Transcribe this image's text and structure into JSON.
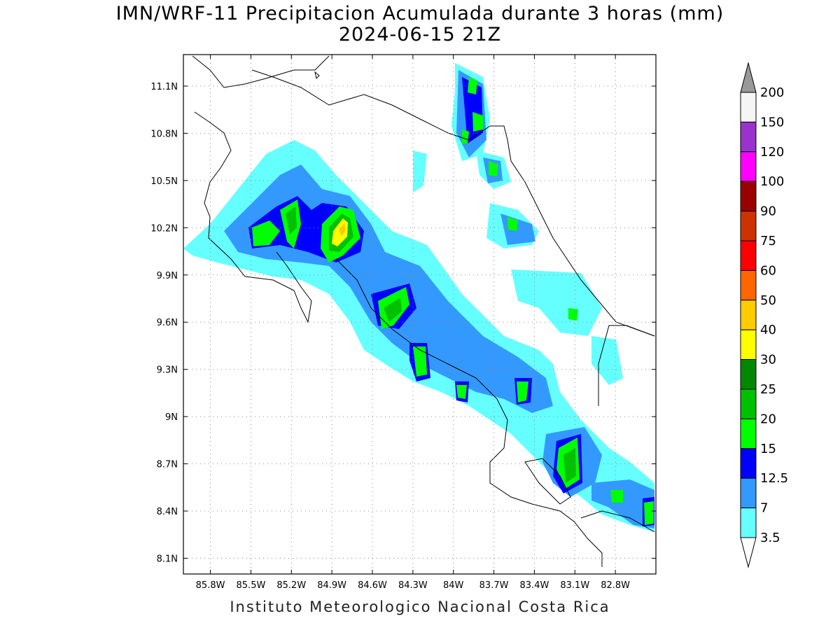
{
  "title": {
    "line1": "IMN/WRF-11 Precipitacion Acumulada durante 3 horas (mm)",
    "line2": "2024-06-15 21Z"
  },
  "footer": "Instituto Meteorologico Nacional Costa Rica",
  "map": {
    "lon_range": [
      -86.0,
      -82.5
    ],
    "lat_range": [
      8.0,
      11.3
    ],
    "lon_ticks": [
      {
        "value": -85.8,
        "label": "85.8W"
      },
      {
        "value": -85.5,
        "label": "85.5W"
      },
      {
        "value": -85.2,
        "label": "85.2W"
      },
      {
        "value": -84.9,
        "label": "84.9W"
      },
      {
        "value": -84.6,
        "label": "84.6W"
      },
      {
        "value": -84.3,
        "label": "84.3W"
      },
      {
        "value": -84.0,
        "label": "84W"
      },
      {
        "value": -83.7,
        "label": "83.7W"
      },
      {
        "value": -83.4,
        "label": "83.4W"
      },
      {
        "value": -83.1,
        "label": "83.1W"
      },
      {
        "value": -82.8,
        "label": "82.8W"
      }
    ],
    "lat_ticks": [
      {
        "value": 11.1,
        "label": "11.1N"
      },
      {
        "value": 10.8,
        "label": "10.8N"
      },
      {
        "value": 10.5,
        "label": "10.5N"
      },
      {
        "value": 10.2,
        "label": "10.2N"
      },
      {
        "value": 9.9,
        "label": "9.9N"
      },
      {
        "value": 9.6,
        "label": "9.6N"
      },
      {
        "value": 9.3,
        "label": "9.3N"
      },
      {
        "value": 9.0,
        "label": "9N"
      },
      {
        "value": 8.7,
        "label": "8.7N"
      },
      {
        "value": 8.4,
        "label": "8.4N"
      },
      {
        "value": 8.1,
        "label": "8.1N"
      }
    ],
    "grid": true
  },
  "colorbar": {
    "levels": [
      "200",
      "150",
      "120",
      "100",
      "90",
      "75",
      "60",
      "50",
      "40",
      "30",
      "25",
      "20",
      "15",
      "12.5",
      "7",
      "3.5"
    ],
    "colors": [
      "#f5f5f5",
      "#9a32cd",
      "#ff00ff",
      "#990000",
      "#cc3300",
      "#ff0000",
      "#ff6600",
      "#ffcc00",
      "#ffff00",
      "#008800",
      "#00c000",
      "#00ff00",
      "#0000ff",
      "#3399ff",
      "#66ffff"
    ],
    "over_color": "#999999",
    "under_color": "#ffffff"
  },
  "colors": {
    "l35": "#66ffff",
    "l7": "#3399ff",
    "l125": "#0000ff",
    "l15": "#00ff00",
    "l20": "#00c000",
    "l25": "#008800",
    "l30": "#ffff00",
    "l40": "#ffcc00"
  }
}
